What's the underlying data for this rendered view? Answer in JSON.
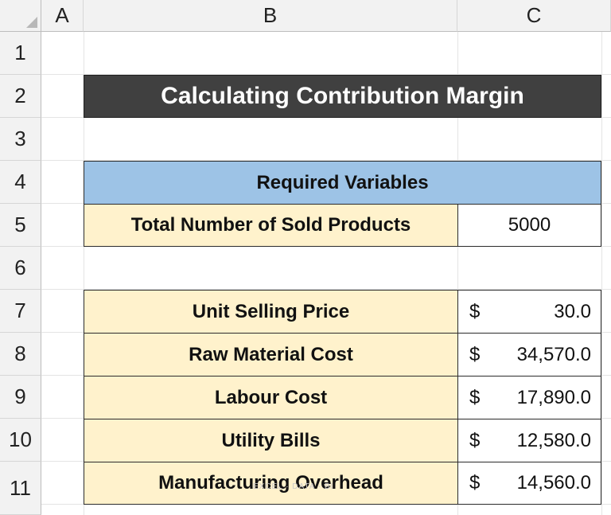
{
  "columns": [
    "A",
    "B",
    "C"
  ],
  "rows": [
    "1",
    "2",
    "3",
    "4",
    "5",
    "6",
    "7",
    "8",
    "9",
    "10",
    "11"
  ],
  "title": "Calculating Contribution Margin",
  "required": {
    "header": "Required Variables",
    "label": "Total Number of Sold Products",
    "value": "5000"
  },
  "items": [
    {
      "label": "Unit Selling Price",
      "currency": "$",
      "amount": "30.0"
    },
    {
      "label": "Raw Material Cost",
      "currency": "$",
      "amount": "34,570.0"
    },
    {
      "label": "Labour Cost",
      "currency": "$",
      "amount": "17,890.0"
    },
    {
      "label": "Utility Bills",
      "currency": "$",
      "amount": "12,580.0"
    },
    {
      "label": "Manufacturing Overhead",
      "currency": "$",
      "amount": "14,560.0"
    }
  ],
  "watermark": "EXCEL · DATA · BI",
  "colors": {
    "title_bg": "#404040",
    "header_blue": "#9dc3e6",
    "label_beige": "#fff2cc"
  }
}
